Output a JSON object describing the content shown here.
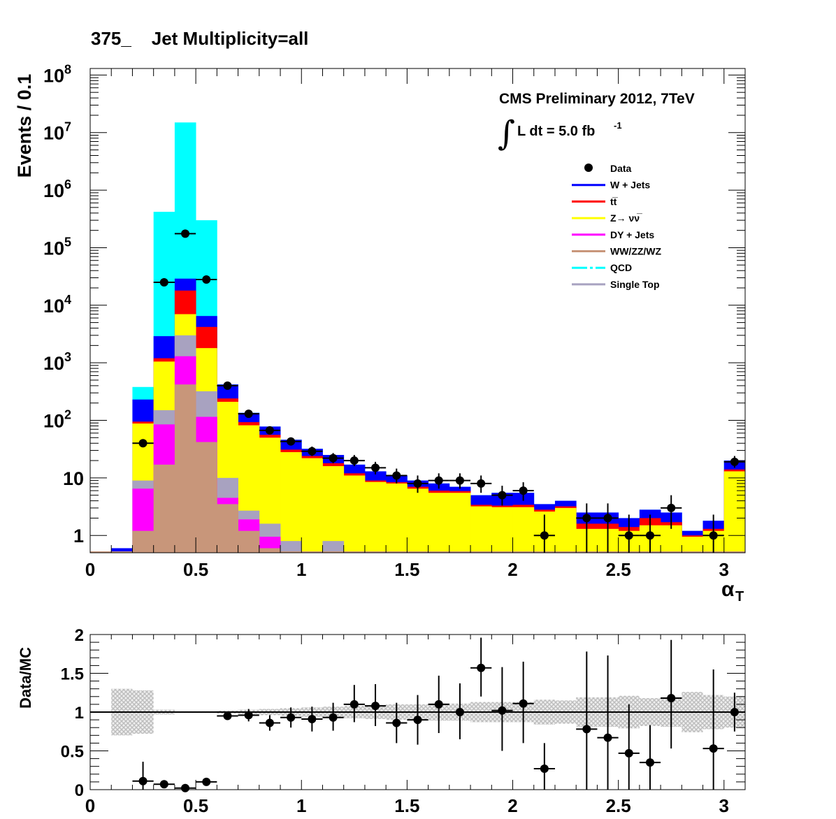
{
  "header": {
    "title": "375_    Jet Multiplicity=all"
  },
  "annotation": {
    "experiment": "CMS Preliminary 2012, 7TeV",
    "lumi_prefix": "L dt = 5.0 fb",
    "lumi_exponent": "-1"
  },
  "legend": {
    "placement": "top-right",
    "entries": [
      {
        "label": "Data",
        "style": "marker",
        "color": "#000000"
      },
      {
        "label": "W + Jets",
        "style": "line",
        "color": "#0000ff"
      },
      {
        "label": "tt̅",
        "style": "line",
        "color": "#ff0000"
      },
      {
        "label": "Z→ νν̅",
        "style": "line",
        "color": "#ffff00"
      },
      {
        "label": "DY + Jets",
        "style": "line",
        "color": "#ff00ff"
      },
      {
        "label": "WW/ZZ/WZ",
        "style": "line",
        "color": "#c8967a"
      },
      {
        "label": "QCD",
        "style": "dashdot",
        "color": "#00ffff"
      },
      {
        "label": "Single Top",
        "style": "line",
        "color": "#a8a2c0"
      }
    ]
  },
  "chart_data": [
    {
      "type": "bar",
      "stacked": true,
      "log_y": true,
      "ylabel": "Events / 0.1",
      "xlabel": "α",
      "xlabel_sub": "T",
      "xlim": [
        0,
        3.1
      ],
      "ylim": [
        0.5,
        130000000
      ],
      "x_ticks": [
        "0",
        "0.5",
        "1",
        "1.5",
        "2",
        "2.5",
        "3"
      ],
      "y_ticks": [
        {
          "mantissa": "1",
          "exp": ""
        },
        {
          "mantissa": "10",
          "exp": ""
        },
        {
          "mantissa": "10",
          "exp": "2"
        },
        {
          "mantissa": "10",
          "exp": "3"
        },
        {
          "mantissa": "10",
          "exp": "4"
        },
        {
          "mantissa": "10",
          "exp": "5"
        },
        {
          "mantissa": "10",
          "exp": "6"
        },
        {
          "mantissa": "10",
          "exp": "7"
        },
        {
          "mantissa": "10",
          "exp": "8"
        }
      ],
      "bin_edges": [
        0,
        0.1,
        0.2,
        0.3,
        0.4,
        0.5,
        0.6,
        0.7,
        0.8,
        0.9,
        1.0,
        1.1,
        1.2,
        1.3,
        1.4,
        1.5,
        1.6,
        1.7,
        1.8,
        1.9,
        2.0,
        2.1,
        2.2,
        2.3,
        2.4,
        2.5,
        2.6,
        2.7,
        2.8,
        2.9,
        3.0,
        3.1
      ],
      "stack_order": [
        "WW/ZZ/WZ",
        "DY + Jets",
        "Single Top",
        "Z→ νν̅",
        "tt̅",
        "W + Jets",
        "QCD"
      ],
      "stack_colors": [
        "#c8967a",
        "#ff00ff",
        "#a8a2c0",
        "#ffff00",
        "#ff0000",
        "#0000ff",
        "#00ffff"
      ],
      "stack_tops": [
        [
          0,
          0,
          1.2,
          17,
          420,
          42,
          3.5,
          1.2,
          0.6,
          0.3,
          0,
          0,
          0,
          0,
          0,
          0,
          0,
          0,
          0,
          0,
          0,
          0,
          0,
          0,
          0,
          0,
          0,
          0,
          0,
          0,
          0
        ],
        [
          0,
          0,
          6.5,
          85,
          1300,
          115,
          4.5,
          1.9,
          0.95,
          0.3,
          0,
          0,
          0,
          0,
          0,
          0,
          0,
          0,
          0,
          0,
          0,
          0,
          0,
          0,
          0,
          0,
          0,
          0,
          0,
          0,
          0
        ],
        [
          0,
          0,
          9,
          150,
          3000,
          320,
          10,
          2.7,
          1.6,
          0.8,
          0,
          0.8,
          0,
          0,
          0,
          0,
          0,
          0,
          0,
          0,
          0,
          0,
          0,
          0,
          0,
          0,
          0,
          0,
          0,
          0,
          0
        ],
        [
          0,
          0,
          88,
          1050,
          7000,
          1800,
          210,
          82,
          50,
          28,
          22,
          16,
          11,
          8.5,
          8,
          6.5,
          5.5,
          5.5,
          3.2,
          3.1,
          3.1,
          2.6,
          3.0,
          1.3,
          1.3,
          1.2,
          1.5,
          1.5,
          0.95,
          1.2,
          13
        ],
        [
          0,
          0,
          95,
          1200,
          18000,
          4200,
          240,
          93,
          56,
          31,
          24,
          18,
          12,
          9,
          8.4,
          7,
          6,
          5.9,
          3.4,
          3.3,
          3.4,
          2.8,
          3.2,
          1.6,
          1.6,
          1.4,
          2.0,
          1.7,
          1.0,
          1.3,
          14
        ],
        [
          0,
          0.6,
          230,
          2900,
          29000,
          6500,
          420,
          135,
          78,
          46,
          32,
          25,
          17,
          13,
          11,
          9,
          8,
          7,
          5,
          5.5,
          5.5,
          3.5,
          4.0,
          2.5,
          2.5,
          2.0,
          2.8,
          2.5,
          1.2,
          1.8,
          20
        ],
        [
          0,
          0.6,
          380,
          420000,
          15000000,
          300000,
          420,
          135,
          78,
          46,
          32,
          25,
          17,
          13,
          11,
          9,
          8,
          7,
          5,
          5.5,
          5.5,
          3.5,
          4.0,
          2.5,
          2.5,
          2.0,
          2.8,
          2.5,
          1.2,
          1.8,
          20
        ]
      ],
      "data_points": [
        {
          "x": 0.25,
          "y": 40,
          "ylo": 34,
          "yhi": 47
        },
        {
          "x": 0.35,
          "y": 25000,
          "ylo": 24500,
          "yhi": 25500
        },
        {
          "x": 0.45,
          "y": 175000,
          "ylo": 174000,
          "yhi": 176000
        },
        {
          "x": 0.55,
          "y": 28000,
          "ylo": 27500,
          "yhi": 28500
        },
        {
          "x": 0.65,
          "y": 400,
          "ylo": 380,
          "yhi": 420
        },
        {
          "x": 0.75,
          "y": 130,
          "ylo": 119,
          "yhi": 141
        },
        {
          "x": 0.85,
          "y": 67,
          "ylo": 59,
          "yhi": 75
        },
        {
          "x": 0.95,
          "y": 43,
          "ylo": 37,
          "yhi": 50
        },
        {
          "x": 1.05,
          "y": 29,
          "ylo": 24,
          "yhi": 35
        },
        {
          "x": 1.15,
          "y": 22,
          "ylo": 18,
          "yhi": 27
        },
        {
          "x": 1.25,
          "y": 20,
          "ylo": 16,
          "yhi": 25
        },
        {
          "x": 1.35,
          "y": 15,
          "ylo": 11.5,
          "yhi": 19
        },
        {
          "x": 1.45,
          "y": 11,
          "ylo": 8,
          "yhi": 14.5
        },
        {
          "x": 1.55,
          "y": 8,
          "ylo": 5.5,
          "yhi": 11
        },
        {
          "x": 1.65,
          "y": 9,
          "ylo": 6.5,
          "yhi": 12
        },
        {
          "x": 1.75,
          "y": 9,
          "ylo": 6.5,
          "yhi": 12
        },
        {
          "x": 1.85,
          "y": 8,
          "ylo": 5.5,
          "yhi": 11
        },
        {
          "x": 1.95,
          "y": 5,
          "ylo": 3.3,
          "yhi": 7.3
        },
        {
          "x": 2.05,
          "y": 6,
          "ylo": 4.0,
          "yhi": 8.4
        },
        {
          "x": 2.15,
          "y": 1,
          "ylo": 0.5,
          "yhi": 2.3
        },
        {
          "x": 2.35,
          "y": 2,
          "ylo": 0.5,
          "yhi": 3.6
        },
        {
          "x": 2.45,
          "y": 2,
          "ylo": 0.5,
          "yhi": 3.6
        },
        {
          "x": 2.55,
          "y": 1,
          "ylo": 0.5,
          "yhi": 2.3
        },
        {
          "x": 2.65,
          "y": 1,
          "ylo": 0.5,
          "yhi": 2.3
        },
        {
          "x": 2.75,
          "y": 3,
          "ylo": 1.3,
          "yhi": 5.0
        },
        {
          "x": 2.95,
          "y": 1,
          "ylo": 0.5,
          "yhi": 2.3
        },
        {
          "x": 3.05,
          "y": 19,
          "ylo": 15,
          "yhi": 24
        }
      ]
    },
    {
      "type": "scatter",
      "ylabel": "Data/MC",
      "xlim": [
        0,
        3.1
      ],
      "ylim": [
        0,
        2
      ],
      "x_ticks": [
        "0",
        "0.5",
        "1",
        "1.5",
        "2",
        "2.5",
        "3"
      ],
      "y_ticks": [
        "0",
        "0.5",
        "1",
        "1.5",
        "2"
      ],
      "reference_line": 1,
      "band_bins_x": [
        0.15,
        0.25,
        0.35,
        0.45,
        0.55,
        0.65,
        0.75,
        0.85,
        0.95,
        1.05,
        1.15,
        1.25,
        1.35,
        1.45,
        1.55,
        1.65,
        1.75,
        1.85,
        1.95,
        2.05,
        2.15,
        2.25,
        2.35,
        2.45,
        2.55,
        2.65,
        2.75,
        2.85,
        2.95,
        3.05
      ],
      "band_halfwidth": [
        0.3,
        0.28,
        0.03,
        0.01,
        0.01,
        0.02,
        0.03,
        0.04,
        0.05,
        0.06,
        0.07,
        0.08,
        0.09,
        0.1,
        0.1,
        0.11,
        0.11,
        0.13,
        0.13,
        0.13,
        0.16,
        0.15,
        0.19,
        0.19,
        0.21,
        0.18,
        0.19,
        0.26,
        0.22,
        0.2
      ],
      "points": [
        {
          "x": 0.25,
          "y": 0.11,
          "ylo": 0.0,
          "yhi": 0.36
        },
        {
          "x": 0.35,
          "y": 0.07,
          "ylo": 0.05,
          "yhi": 0.09
        },
        {
          "x": 0.45,
          "y": 0.02,
          "ylo": 0.015,
          "yhi": 0.025
        },
        {
          "x": 0.55,
          "y": 0.1,
          "ylo": 0.08,
          "yhi": 0.12
        },
        {
          "x": 0.65,
          "y": 0.95,
          "ylo": 0.9,
          "yhi": 1.0
        },
        {
          "x": 0.75,
          "y": 0.96,
          "ylo": 0.88,
          "yhi": 1.04
        },
        {
          "x": 0.85,
          "y": 0.86,
          "ylo": 0.76,
          "yhi": 0.96
        },
        {
          "x": 0.95,
          "y": 0.93,
          "ylo": 0.8,
          "yhi": 1.06
        },
        {
          "x": 1.05,
          "y": 0.91,
          "ylo": 0.75,
          "yhi": 1.07
        },
        {
          "x": 1.15,
          "y": 0.93,
          "ylo": 0.76,
          "yhi": 1.12
        },
        {
          "x": 1.25,
          "y": 1.1,
          "ylo": 0.87,
          "yhi": 1.35
        },
        {
          "x": 1.35,
          "y": 1.08,
          "ylo": 0.82,
          "yhi": 1.36
        },
        {
          "x": 1.45,
          "y": 0.86,
          "ylo": 0.6,
          "yhi": 1.12
        },
        {
          "x": 1.55,
          "y": 0.9,
          "ylo": 0.58,
          "yhi": 1.22
        },
        {
          "x": 1.65,
          "y": 1.1,
          "ylo": 0.73,
          "yhi": 1.47
        },
        {
          "x": 1.75,
          "y": 1.0,
          "ylo": 0.65,
          "yhi": 1.37
        },
        {
          "x": 1.85,
          "y": 1.57,
          "ylo": 1.2,
          "yhi": 1.96
        },
        {
          "x": 1.95,
          "y": 1.02,
          "ylo": 0.5,
          "yhi": 1.58
        },
        {
          "x": 2.05,
          "y": 1.11,
          "ylo": 0.6,
          "yhi": 1.65
        },
        {
          "x": 2.15,
          "y": 0.27,
          "ylo": 0.0,
          "yhi": 0.6
        },
        {
          "x": 2.35,
          "y": 0.78,
          "ylo": 0.0,
          "yhi": 1.78
        },
        {
          "x": 2.45,
          "y": 0.67,
          "ylo": 0.0,
          "yhi": 1.73
        },
        {
          "x": 2.55,
          "y": 0.47,
          "ylo": 0.0,
          "yhi": 1.1
        },
        {
          "x": 2.65,
          "y": 0.35,
          "ylo": 0.0,
          "yhi": 0.83
        },
        {
          "x": 2.75,
          "y": 1.18,
          "ylo": 0.53,
          "yhi": 1.93
        },
        {
          "x": 2.95,
          "y": 0.53,
          "ylo": 0.0,
          "yhi": 1.55
        },
        {
          "x": 3.05,
          "y": 1.0,
          "ylo": 0.75,
          "yhi": 1.25
        }
      ]
    }
  ]
}
